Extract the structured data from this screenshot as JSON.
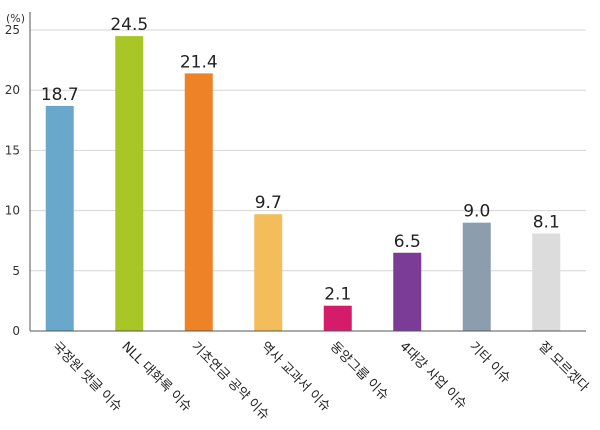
{
  "chart_data": {
    "type": "bar",
    "unit_label": "(%)",
    "categories": [
      "국정원 댓글 이슈",
      "NLL 대화록 이슈",
      "기초연금 공약 이슈",
      "역사 교과서 이슈",
      "동양그룹 이슈",
      "4대강 사업 이슈",
      "기타 이슈",
      "잘 모르겠다"
    ],
    "values": [
      18.7,
      24.5,
      21.4,
      9.7,
      2.1,
      6.5,
      9.0,
      8.1
    ],
    "value_labels": [
      "18.7",
      "24.5",
      "21.4",
      "9.7",
      "2.1",
      "6.5",
      "9.0",
      "8.1"
    ],
    "colors": [
      "#6aa8cb",
      "#a8c626",
      "#ee8227",
      "#f2bd5a",
      "#d41c6b",
      "#7a3c97",
      "#8c9ead",
      "#dcdcdc"
    ],
    "y_ticks": [
      0,
      5,
      10,
      15,
      20,
      25
    ],
    "y_tick_labels": [
      "0",
      "5",
      "10",
      "15",
      "20",
      "25"
    ],
    "ylim": [
      0,
      26.5
    ],
    "grid": true,
    "legend": "none"
  }
}
